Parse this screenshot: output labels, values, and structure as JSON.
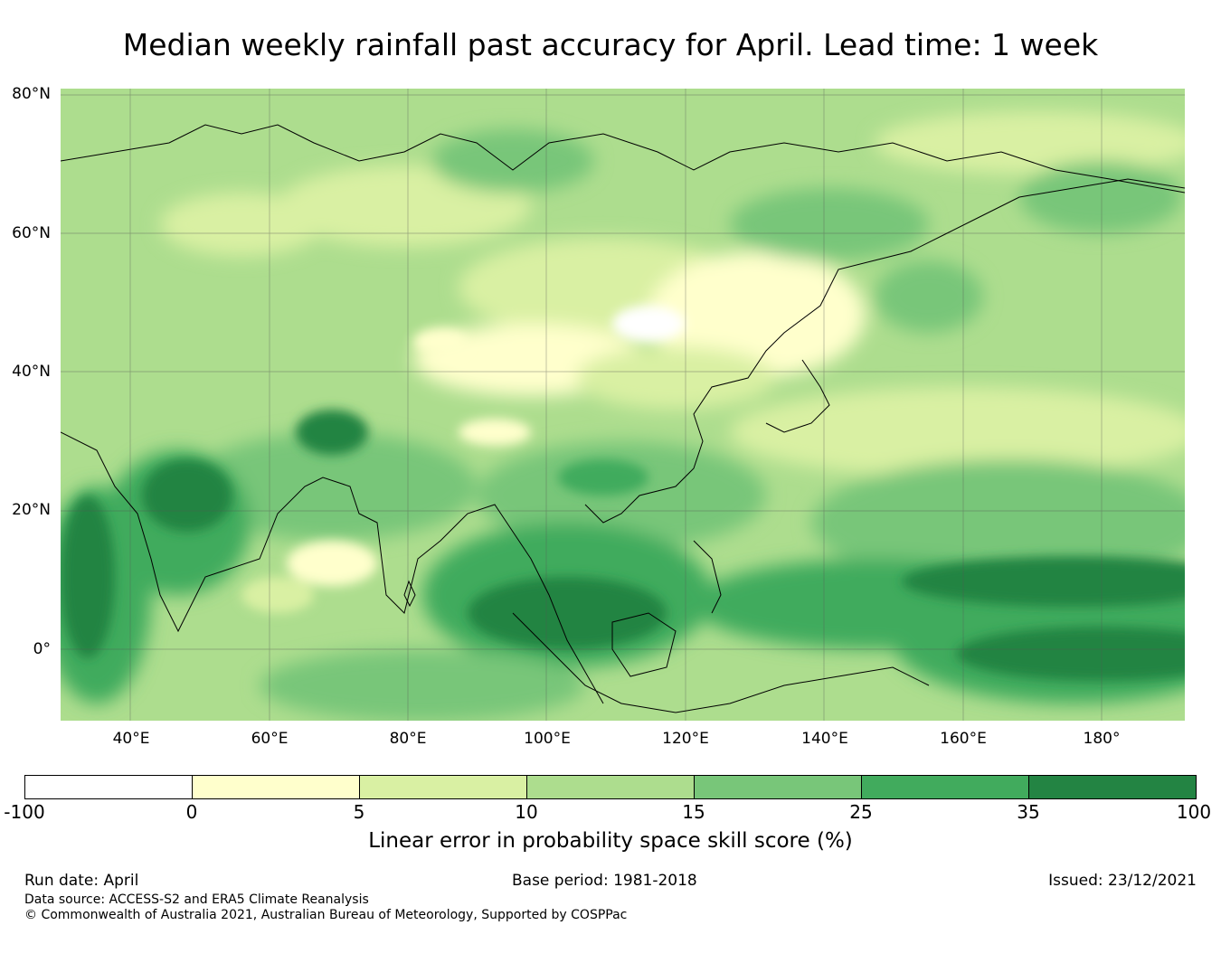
{
  "title": "Median weekly rainfall past accuracy for April. Lead time: 1 week",
  "map": {
    "latitude_labels": [
      "80°N",
      "60°N",
      "40°N",
      "20°N",
      "0°"
    ],
    "longitude_labels": [
      "40°E",
      "60°E",
      "80°E",
      "100°E",
      "120°E",
      "140°E",
      "160°E",
      "180°"
    ],
    "extent": {
      "lon": [
        30,
        192
      ],
      "lat": [
        -10,
        80
      ]
    },
    "grid": true
  },
  "legend": {
    "label": "Linear error in probability space skill score (%)",
    "ticks": [
      "-100",
      "0",
      "5",
      "10",
      "15",
      "25",
      "35",
      "100"
    ],
    "colors": [
      "#ffffff",
      "#ffffcc",
      "#d9f0a3",
      "#addd8e",
      "#78c679",
      "#41ab5d",
      "#238443"
    ]
  },
  "footer": {
    "run_date": "Run date: April",
    "base_period": "Base period: 1981-2018",
    "issued": "Issued: 23/12/2021",
    "data_source": "Data source: ACCESS-S2 and ERA5 Climate Reanalysis",
    "copyright": "© Commonwealth of Australia 2021, Australian Bureau of Meteorology, Supported by COSPPac"
  }
}
